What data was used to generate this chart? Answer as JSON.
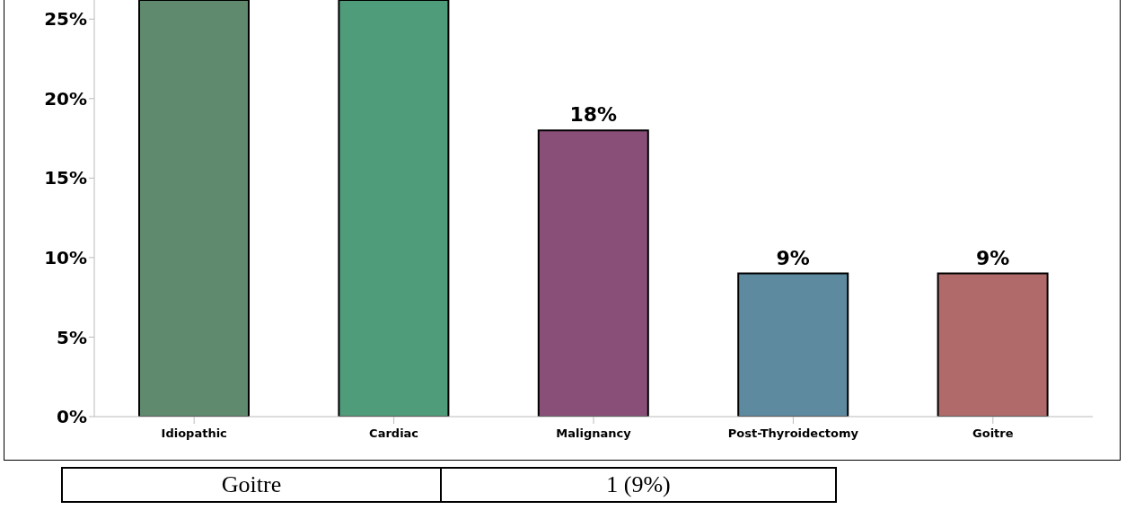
{
  "chart_data": {
    "type": "bar",
    "categories": [
      "Idiopathic",
      "Cardiac",
      "Malignancy",
      "Post-Thyroidectomy",
      "Goitre"
    ],
    "values": [
      26.2,
      26.2,
      18,
      9,
      9
    ],
    "colors": [
      "#5f8a6e",
      "#4f9c7a",
      "#8a4f78",
      "#5e8aa0",
      "#b06a6a"
    ],
    "value_labels": [
      null,
      null,
      "18%",
      "9%",
      "9%"
    ],
    "ylim": [
      0,
      26.2
    ],
    "yticks": [
      {
        "value": 0,
        "label": "0%"
      },
      {
        "value": 5,
        "label": "5%"
      },
      {
        "value": 10,
        "label": "10%"
      },
      {
        "value": 15,
        "label": "15%"
      },
      {
        "value": 20,
        "label": "20%"
      },
      {
        "value": 25,
        "label": "25%"
      }
    ],
    "grid": false,
    "legend": false,
    "annotations": [
      "Goitre",
      "1 (9%)"
    ]
  }
}
